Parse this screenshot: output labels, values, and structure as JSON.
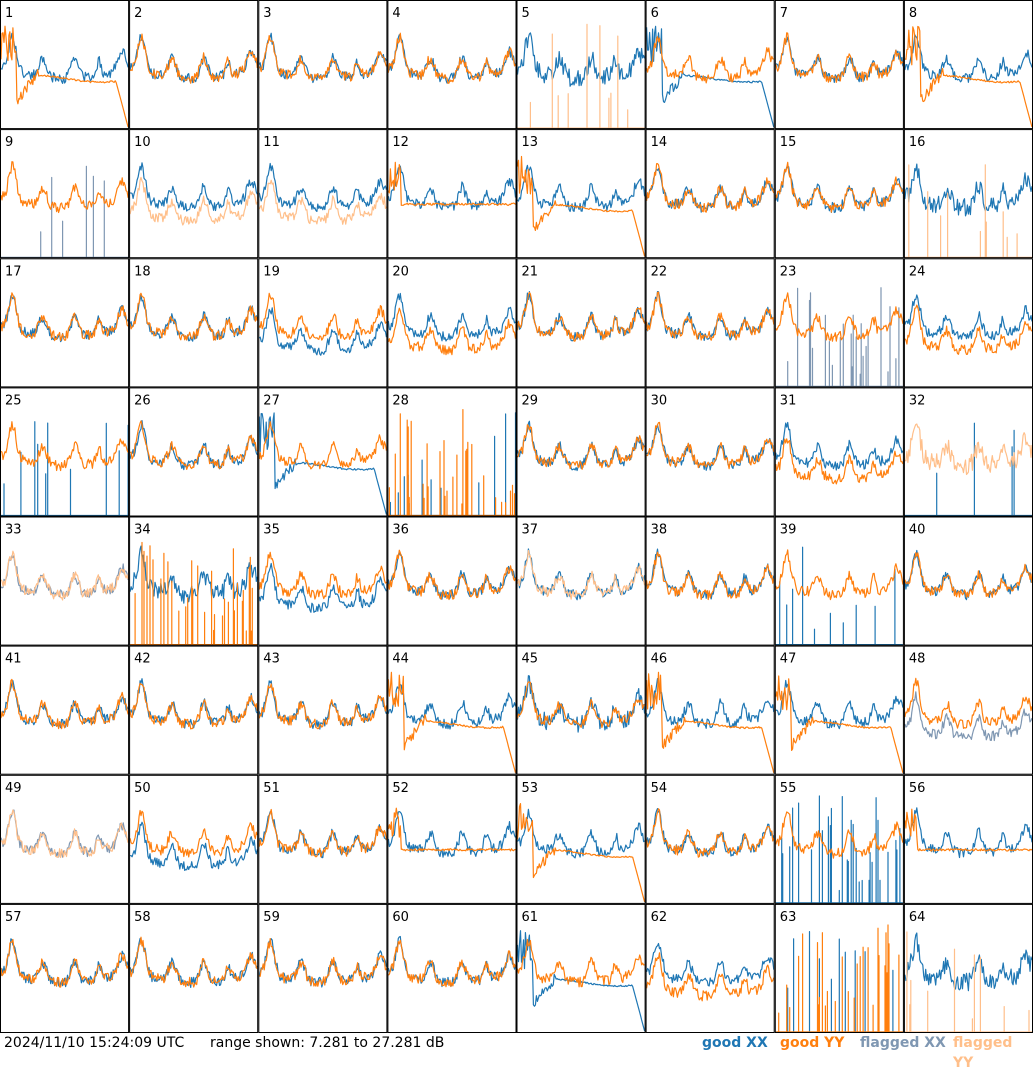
{
  "footer": {
    "timestamp": "2024/11/10 15:24:09 UTC",
    "range_text": "range shown: 7.281 to 27.281 dB"
  },
  "legend": [
    {
      "label": "good XX",
      "word": "good",
      "pol": "XX",
      "color": "#1f77b4"
    },
    {
      "label": "good YY",
      "word": "good",
      "pol": "YY",
      "color": "#ff7f0e"
    },
    {
      "label": "flagged XX",
      "word": "flagged",
      "pol": "XX",
      "color": "#7f97b2"
    },
    {
      "label": "flagged YY",
      "word": "flagged",
      "pol": "YY",
      "color": "#ffbf8a"
    }
  ],
  "chart_data": {
    "type": "line",
    "grid": {
      "rows": 8,
      "cols": 8
    },
    "ylim": [
      7.281,
      27.281
    ],
    "yunit": "dB",
    "panels": [
      {
        "id": 1,
        "xx": "good",
        "yy": "good",
        "xx_shape": "normal",
        "yy_shape": "rolloff"
      },
      {
        "id": 2,
        "xx": "good",
        "yy": "good",
        "xx_shape": "normal",
        "yy_shape": "normal"
      },
      {
        "id": 3,
        "xx": "good",
        "yy": "good",
        "xx_shape": "normal",
        "yy_shape": "normal"
      },
      {
        "id": 4,
        "xx": "good",
        "yy": "good",
        "xx_shape": "normal",
        "yy_shape": "normal"
      },
      {
        "id": 5,
        "xx": "good",
        "yy": "flagged",
        "xx_shape": "noisy",
        "yy_shape": "spikes"
      },
      {
        "id": 6,
        "xx": "good",
        "yy": "good",
        "xx_shape": "rolloff",
        "yy_shape": "normal"
      },
      {
        "id": 7,
        "xx": "good",
        "yy": "good",
        "xx_shape": "normal",
        "yy_shape": "normal"
      },
      {
        "id": 8,
        "xx": "good",
        "yy": "good",
        "xx_shape": "normal",
        "yy_shape": "rolloff"
      },
      {
        "id": 9,
        "xx": "flagged",
        "yy": "good",
        "xx_shape": "spikes",
        "yy_shape": "normal"
      },
      {
        "id": 10,
        "xx": "good",
        "yy": "flagged",
        "xx_shape": "normal",
        "yy_shape": "low"
      },
      {
        "id": 11,
        "xx": "good",
        "yy": "flagged",
        "xx_shape": "normal",
        "yy_shape": "low"
      },
      {
        "id": 12,
        "xx": "good",
        "yy": "good",
        "xx_shape": "normal",
        "yy_shape": "flat"
      },
      {
        "id": 13,
        "xx": "good",
        "yy": "good",
        "xx_shape": "normal",
        "yy_shape": "rolloff"
      },
      {
        "id": 14,
        "xx": "good",
        "yy": "good",
        "xx_shape": "normal",
        "yy_shape": "normal"
      },
      {
        "id": 15,
        "xx": "good",
        "yy": "good",
        "xx_shape": "normal",
        "yy_shape": "normal"
      },
      {
        "id": 16,
        "xx": "good",
        "yy": "flagged",
        "xx_shape": "noisy",
        "yy_shape": "spikes"
      },
      {
        "id": 17,
        "xx": "good",
        "yy": "good",
        "xx_shape": "normal",
        "yy_shape": "normal"
      },
      {
        "id": 18,
        "xx": "good",
        "yy": "good",
        "xx_shape": "normal",
        "yy_shape": "normal"
      },
      {
        "id": 19,
        "xx": "good",
        "yy": "good",
        "xx_shape": "low",
        "yy_shape": "normal"
      },
      {
        "id": 20,
        "xx": "good",
        "yy": "good",
        "xx_shape": "normal",
        "yy_shape": "low"
      },
      {
        "id": 21,
        "xx": "good",
        "yy": "good",
        "xx_shape": "normal",
        "yy_shape": "normal"
      },
      {
        "id": 22,
        "xx": "good",
        "yy": "good",
        "xx_shape": "normal",
        "yy_shape": "normal"
      },
      {
        "id": 23,
        "xx": "flagged",
        "yy": "good",
        "xx_shape": "spikes_dense",
        "yy_shape": "normal"
      },
      {
        "id": 24,
        "xx": "good",
        "yy": "good",
        "xx_shape": "normal",
        "yy_shape": "low"
      },
      {
        "id": 25,
        "xx": "good",
        "yy": "good",
        "xx_shape": "spikes",
        "yy_shape": "normal"
      },
      {
        "id": 26,
        "xx": "good",
        "yy": "good",
        "xx_shape": "normal",
        "yy_shape": "normal"
      },
      {
        "id": 27,
        "xx": "good",
        "yy": "good",
        "xx_shape": "rolloff",
        "yy_shape": "normal"
      },
      {
        "id": 28,
        "xx": "good",
        "yy": "good",
        "xx_shape": "spikes",
        "yy_shape": "spikes_dense"
      },
      {
        "id": 29,
        "xx": "good",
        "yy": "good",
        "xx_shape": "normal",
        "yy_shape": "normal"
      },
      {
        "id": 30,
        "xx": "good",
        "yy": "good",
        "xx_shape": "normal",
        "yy_shape": "normal"
      },
      {
        "id": 31,
        "xx": "good",
        "yy": "good",
        "xx_shape": "normal",
        "yy_shape": "low"
      },
      {
        "id": 32,
        "xx": "good",
        "yy": "flagged",
        "xx_shape": "spikes",
        "yy_shape": "noisy"
      },
      {
        "id": 33,
        "xx": "flagged",
        "yy": "flagged",
        "xx_shape": "normal",
        "yy_shape": "normal"
      },
      {
        "id": 34,
        "xx": "good",
        "yy": "good",
        "xx_shape": "noisy",
        "yy_shape": "spikes_dense"
      },
      {
        "id": 35,
        "xx": "good",
        "yy": "good",
        "xx_shape": "low",
        "yy_shape": "normal"
      },
      {
        "id": 36,
        "xx": "good",
        "yy": "good",
        "xx_shape": "normal",
        "yy_shape": "normal"
      },
      {
        "id": 37,
        "xx": "good",
        "yy": "flagged",
        "xx_shape": "normal",
        "yy_shape": "normal"
      },
      {
        "id": 38,
        "xx": "good",
        "yy": "good",
        "xx_shape": "normal",
        "yy_shape": "normal"
      },
      {
        "id": 39,
        "xx": "good",
        "yy": "good",
        "xx_shape": "spikes",
        "yy_shape": "normal"
      },
      {
        "id": 40,
        "xx": "good",
        "yy": "good",
        "xx_shape": "normal",
        "yy_shape": "normal"
      },
      {
        "id": 41,
        "xx": "good",
        "yy": "good",
        "xx_shape": "normal",
        "yy_shape": "normal"
      },
      {
        "id": 42,
        "xx": "good",
        "yy": "good",
        "xx_shape": "normal",
        "yy_shape": "normal"
      },
      {
        "id": 43,
        "xx": "good",
        "yy": "good",
        "xx_shape": "normal",
        "yy_shape": "normal"
      },
      {
        "id": 44,
        "xx": "good",
        "yy": "good",
        "xx_shape": "normal",
        "yy_shape": "rolloff"
      },
      {
        "id": 45,
        "xx": "good",
        "yy": "good",
        "xx_shape": "noisy",
        "yy_shape": "normal"
      },
      {
        "id": 46,
        "xx": "good",
        "yy": "good",
        "xx_shape": "normal",
        "yy_shape": "rolloff"
      },
      {
        "id": 47,
        "xx": "good",
        "yy": "good",
        "xx_shape": "normal",
        "yy_shape": "rolloff"
      },
      {
        "id": 48,
        "xx": "flagged",
        "yy": "good",
        "xx_shape": "low",
        "yy_shape": "normal"
      },
      {
        "id": 49,
        "xx": "flagged",
        "yy": "flagged",
        "xx_shape": "normal",
        "yy_shape": "normal"
      },
      {
        "id": 50,
        "xx": "good",
        "yy": "good",
        "xx_shape": "low",
        "yy_shape": "normal"
      },
      {
        "id": 51,
        "xx": "good",
        "yy": "good",
        "xx_shape": "normal",
        "yy_shape": "normal"
      },
      {
        "id": 52,
        "xx": "good",
        "yy": "good",
        "xx_shape": "normal",
        "yy_shape": "flat"
      },
      {
        "id": 53,
        "xx": "good",
        "yy": "good",
        "xx_shape": "normal",
        "yy_shape": "rolloff"
      },
      {
        "id": 54,
        "xx": "good",
        "yy": "good",
        "xx_shape": "normal",
        "yy_shape": "normal"
      },
      {
        "id": 55,
        "xx": "good",
        "yy": "good",
        "xx_shape": "spikes_dense",
        "yy_shape": "normal"
      },
      {
        "id": 56,
        "xx": "good",
        "yy": "good",
        "xx_shape": "normal",
        "yy_shape": "flat"
      },
      {
        "id": 57,
        "xx": "good",
        "yy": "good",
        "xx_shape": "normal",
        "yy_shape": "normal"
      },
      {
        "id": 58,
        "xx": "good",
        "yy": "good",
        "xx_shape": "normal",
        "yy_shape": "normal"
      },
      {
        "id": 59,
        "xx": "good",
        "yy": "good",
        "xx_shape": "normal",
        "yy_shape": "normal"
      },
      {
        "id": 60,
        "xx": "good",
        "yy": "good",
        "xx_shape": "normal",
        "yy_shape": "normal"
      },
      {
        "id": 61,
        "xx": "good",
        "yy": "good",
        "xx_shape": "rolloff",
        "yy_shape": "normal"
      },
      {
        "id": 62,
        "xx": "good",
        "yy": "good",
        "xx_shape": "normal",
        "yy_shape": "low"
      },
      {
        "id": 63,
        "xx": "good",
        "yy": "good",
        "xx_shape": "spikes",
        "yy_shape": "spikes_dense"
      },
      {
        "id": 64,
        "xx": "good",
        "yy": "flagged",
        "xx_shape": "noisy",
        "yy_shape": "spikes"
      }
    ]
  }
}
